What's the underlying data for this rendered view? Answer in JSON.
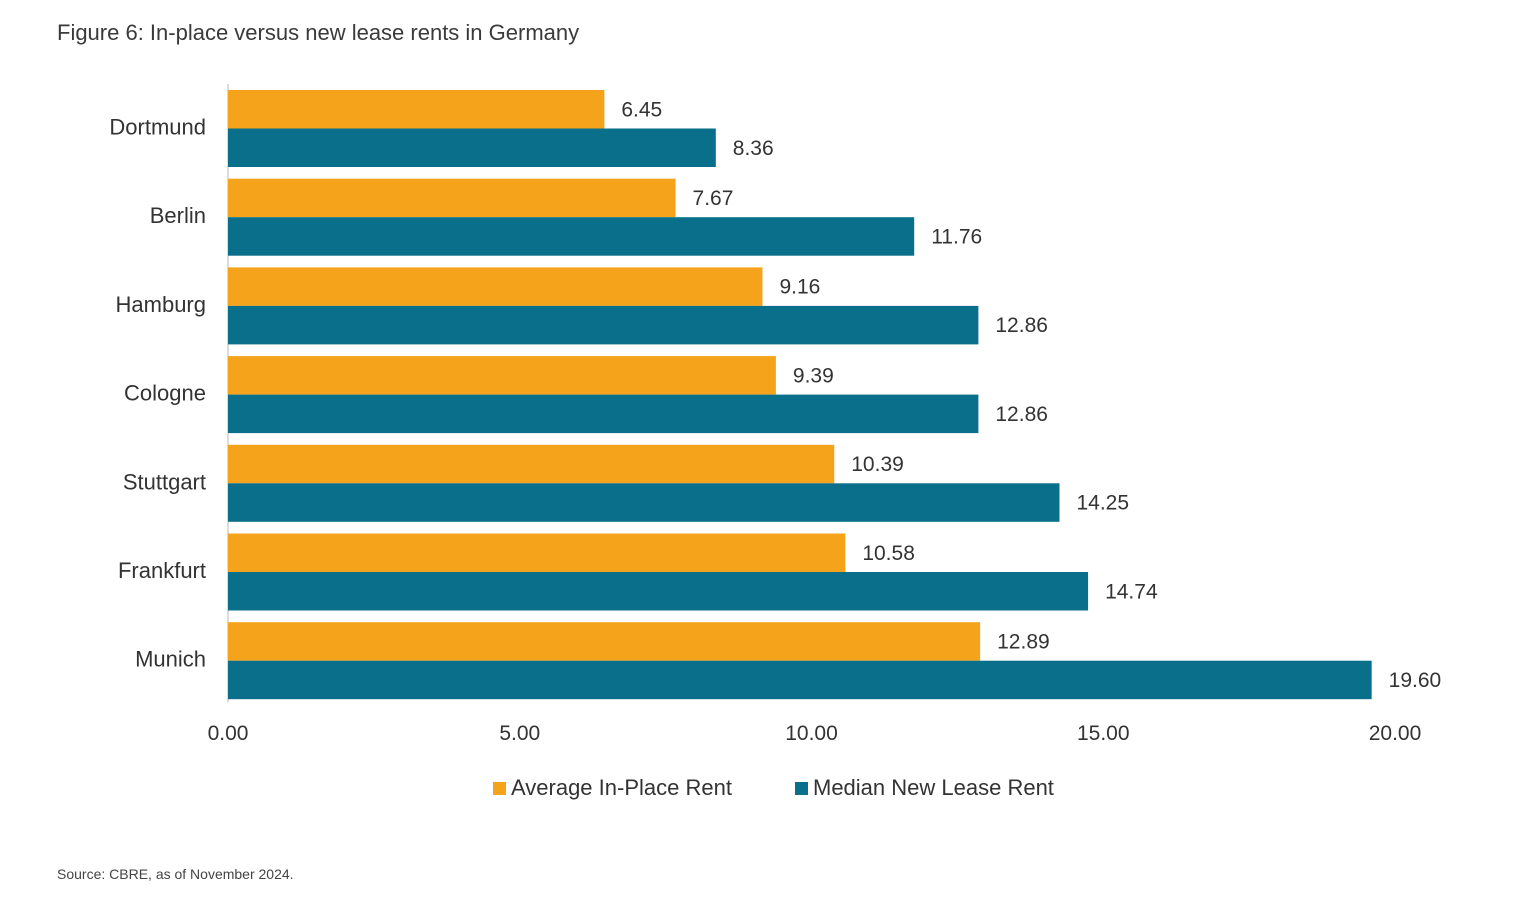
{
  "title": "Figure 6: In-place versus new lease rents in Germany",
  "source": "Source: CBRE, as of November 2024.",
  "colors": {
    "in_place": "#F5A31A",
    "new_lease": "#0A6F8A",
    "axis": "#cfcfcf"
  },
  "chart_data": {
    "type": "bar",
    "orientation": "horizontal",
    "categories": [
      "Dortmund",
      "Berlin",
      "Hamburg",
      "Cologne",
      "Stuttgart",
      "Frankfurt",
      "Munich"
    ],
    "series": [
      {
        "name": "Average In-Place Rent",
        "values": [
          6.45,
          7.67,
          9.16,
          9.39,
          10.39,
          10.58,
          12.89
        ],
        "labels": [
          "6.45",
          "7.67",
          "9.16",
          "9.39",
          "10.39",
          "10.58",
          "12.89"
        ]
      },
      {
        "name": "Median New Lease Rent",
        "values": [
          8.36,
          11.76,
          12.86,
          12.86,
          14.25,
          14.74,
          19.6
        ],
        "labels": [
          "8.36",
          "11.76",
          "12.86",
          "12.86",
          "14.25",
          "14.74",
          "19.60"
        ]
      }
    ],
    "xlim": [
      0,
      20
    ],
    "xticks": [
      0,
      5,
      10,
      15,
      20
    ],
    "xtick_labels": [
      "0.00",
      "5.00",
      "10.00",
      "15.00",
      "20.00"
    ],
    "grid": false,
    "legend_position": "bottom-center"
  }
}
